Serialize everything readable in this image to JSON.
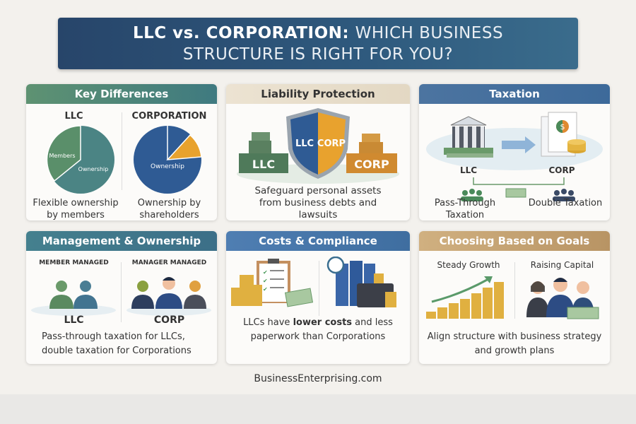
{
  "title": {
    "highlight": "LLC vs. CORPORATION:",
    "rest_line1": "WHICH BUSINESS",
    "line2": "STRUCTURE IS RIGHT FOR YOU?"
  },
  "cards": {
    "key_differences": {
      "title": "Key Differences",
      "llc_label": "LLC",
      "corp_label": "CORPORATION",
      "llc_slice_members": "Members",
      "llc_slice_ownership": "Ownership",
      "corp_slice_ownership": "Ownership",
      "llc_caption": "Flexible ownership by members",
      "corp_caption": "Ownership by shareholders",
      "colors": {
        "llc_members": "#5a8f6a",
        "llc_ownership": "#4b8484",
        "corp_main": "#2f5b94",
        "corp_accent": "#e8a22e"
      }
    },
    "liability": {
      "title": "Liability Protection",
      "shield_llc": "LLC",
      "shield_corp": "CORP",
      "box_llc": "LLC",
      "box_corp": "CORP",
      "caption": "Safeguard personal assets from business debts and lawsuits"
    },
    "taxation": {
      "title": "Taxation",
      "llc_label": "LLC",
      "corp_label": "CORP",
      "llc_caption": "Pass-Through Taxation",
      "corp_caption": "Double Taxation"
    },
    "management": {
      "title": "Management & Ownership",
      "llc_heading": "MEMBER MANAGED",
      "corp_heading": "MANAGER MANAGED",
      "llc_label": "LLC",
      "corp_label": "CORP",
      "caption": "Pass-through taxation for LLCs, double taxation for Corporations"
    },
    "costs": {
      "title": "Costs & Compliance",
      "caption_pre": "LLCs have ",
      "caption_bold": "lower costs",
      "caption_post": " and less paperwork than Corporations"
    },
    "goals": {
      "title": "Choosing Based on Goals",
      "left_heading": "Steady Growth",
      "right_heading": "Raising Capital",
      "caption": "Align structure with business strategy and growth plans"
    }
  },
  "footer": "BusinessEnterprising.com"
}
